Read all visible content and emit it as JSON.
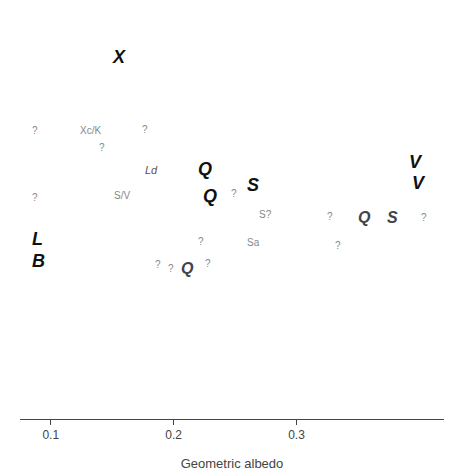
{
  "chart_data": {
    "type": "text",
    "xlabel": "Geometric albedo",
    "xlim": [
      0.075,
      0.42
    ],
    "ylim": [
      0.0,
      1.0
    ],
    "xticks": [
      0.1,
      0.2,
      0.3
    ],
    "grid": false,
    "tick_labels": "x",
    "annotations": [
      {
        "text": "X",
        "x": 0.148,
        "y": 0.895,
        "color": "#111111"
      },
      {
        "text": "?",
        "x": 0.083,
        "y": 0.715,
        "color": "#888888"
      },
      {
        "text": "Xc/K",
        "x": 0.122,
        "y": 0.715,
        "color": "#888888"
      },
      {
        "text": "?",
        "x": 0.173,
        "y": 0.716,
        "color": "#888888"
      },
      {
        "text": "?",
        "x": 0.138,
        "y": 0.672,
        "color": "#888888"
      },
      {
        "text": "Ld",
        "x": 0.175,
        "y": 0.617,
        "color": "#555555"
      },
      {
        "text": "Q",
        "x": 0.218,
        "y": 0.62,
        "color": "#111111"
      },
      {
        "text": "V",
        "x": 0.39,
        "y": 0.635,
        "color": "#111111"
      },
      {
        "text": "V",
        "x": 0.392,
        "y": 0.585,
        "color": "#111111"
      },
      {
        "text": "S",
        "x": 0.258,
        "y": 0.578,
        "color": "#111111"
      },
      {
        "text": "?",
        "x": 0.245,
        "y": 0.558,
        "color": "#888888"
      },
      {
        "text": "Q",
        "x": 0.222,
        "y": 0.553,
        "color": "#111111"
      },
      {
        "text": "S/V",
        "x": 0.15,
        "y": 0.553,
        "color": "#888888"
      },
      {
        "text": "?",
        "x": 0.083,
        "y": 0.548,
        "color": "#888888"
      },
      {
        "text": "S?",
        "x": 0.268,
        "y": 0.507,
        "color": "#888888"
      },
      {
        "text": "?",
        "x": 0.323,
        "y": 0.502,
        "color": "#888888"
      },
      {
        "text": "Q",
        "x": 0.348,
        "y": 0.498,
        "color": "#444444"
      },
      {
        "text": "S",
        "x": 0.372,
        "y": 0.498,
        "color": "#444444"
      },
      {
        "text": "?",
        "x": 0.4,
        "y": 0.498,
        "color": "#888888"
      },
      {
        "text": "L",
        "x": 0.083,
        "y": 0.445,
        "color": "#111111"
      },
      {
        "text": "?",
        "x": 0.218,
        "y": 0.44,
        "color": "#888888"
      },
      {
        "text": "Sa",
        "x": 0.258,
        "y": 0.437,
        "color": "#888888"
      },
      {
        "text": "?",
        "x": 0.33,
        "y": 0.43,
        "color": "#888888"
      },
      {
        "text": "B",
        "x": 0.083,
        "y": 0.39,
        "color": "#111111"
      },
      {
        "text": "?",
        "x": 0.183,
        "y": 0.383,
        "color": "#888888"
      },
      {
        "text": "?",
        "x": 0.194,
        "y": 0.373,
        "color": "#888888"
      },
      {
        "text": "Q",
        "x": 0.204,
        "y": 0.373,
        "color": "#444444"
      },
      {
        "text": "?",
        "x": 0.224,
        "y": 0.385,
        "color": "#888888"
      }
    ]
  }
}
